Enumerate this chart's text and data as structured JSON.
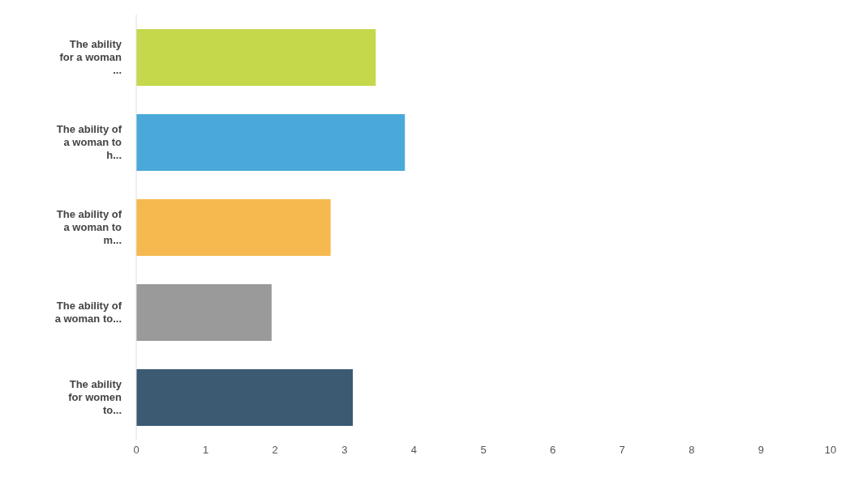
{
  "chart_data": {
    "type": "bar",
    "orientation": "horizontal",
    "categories": [
      "The ability for a woman ...",
      "The ability of a woman to h...",
      "The ability of a woman to m...",
      "The ability of a woman to...",
      "The ability for women to..."
    ],
    "values": [
      3.45,
      3.87,
      2.8,
      1.95,
      3.12
    ],
    "colors": [
      "#c5d84c",
      "#4aa9d9",
      "#f5b94f",
      "#9a9a9a",
      "#3c5a72"
    ],
    "xlim": [
      0,
      10
    ],
    "xticks": [
      0,
      1,
      2,
      3,
      4,
      5,
      6,
      7,
      8,
      9,
      10
    ],
    "grid": false
  }
}
